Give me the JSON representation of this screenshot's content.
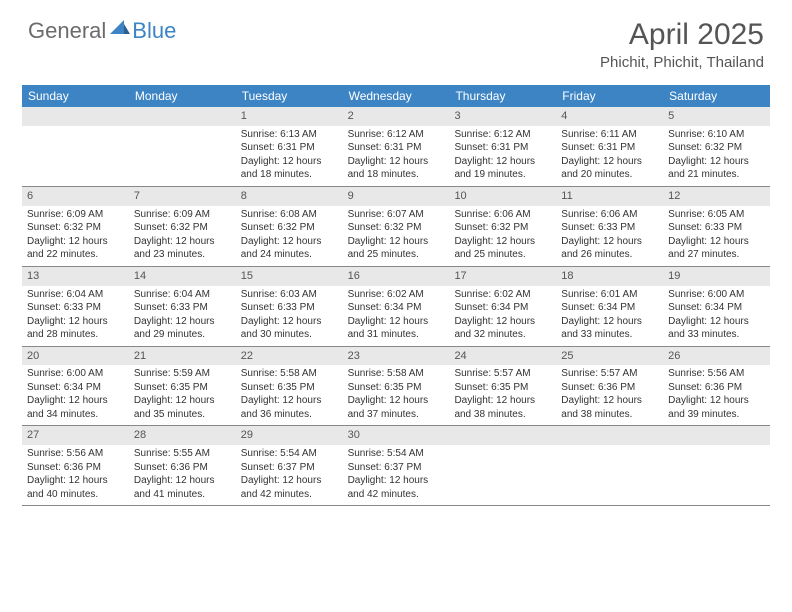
{
  "logo": {
    "part1": "General",
    "part2": "Blue"
  },
  "title": "April 2025",
  "location": "Phichit, Phichit, Thailand",
  "colors": {
    "header_bg": "#3d84c4",
    "header_text": "#ffffff",
    "daynum_bg": "#e8e8e8",
    "text": "#333333",
    "logo_gray": "#6b6b6b",
    "logo_blue": "#3d84c4"
  },
  "typography": {
    "title_fontsize": 30,
    "location_fontsize": 15,
    "weekday_fontsize": 12,
    "cell_fontsize": 10,
    "logo_fontsize": 22
  },
  "weekdays": [
    "Sunday",
    "Monday",
    "Tuesday",
    "Wednesday",
    "Thursday",
    "Friday",
    "Saturday"
  ],
  "weeks": [
    [
      {
        "empty": true
      },
      {
        "empty": true
      },
      {
        "day": "1",
        "sunrise": "Sunrise: 6:13 AM",
        "sunset": "Sunset: 6:31 PM",
        "daylight": "Daylight: 12 hours and 18 minutes."
      },
      {
        "day": "2",
        "sunrise": "Sunrise: 6:12 AM",
        "sunset": "Sunset: 6:31 PM",
        "daylight": "Daylight: 12 hours and 18 minutes."
      },
      {
        "day": "3",
        "sunrise": "Sunrise: 6:12 AM",
        "sunset": "Sunset: 6:31 PM",
        "daylight": "Daylight: 12 hours and 19 minutes."
      },
      {
        "day": "4",
        "sunrise": "Sunrise: 6:11 AM",
        "sunset": "Sunset: 6:31 PM",
        "daylight": "Daylight: 12 hours and 20 minutes."
      },
      {
        "day": "5",
        "sunrise": "Sunrise: 6:10 AM",
        "sunset": "Sunset: 6:32 PM",
        "daylight": "Daylight: 12 hours and 21 minutes."
      }
    ],
    [
      {
        "day": "6",
        "sunrise": "Sunrise: 6:09 AM",
        "sunset": "Sunset: 6:32 PM",
        "daylight": "Daylight: 12 hours and 22 minutes."
      },
      {
        "day": "7",
        "sunrise": "Sunrise: 6:09 AM",
        "sunset": "Sunset: 6:32 PM",
        "daylight": "Daylight: 12 hours and 23 minutes."
      },
      {
        "day": "8",
        "sunrise": "Sunrise: 6:08 AM",
        "sunset": "Sunset: 6:32 PM",
        "daylight": "Daylight: 12 hours and 24 minutes."
      },
      {
        "day": "9",
        "sunrise": "Sunrise: 6:07 AM",
        "sunset": "Sunset: 6:32 PM",
        "daylight": "Daylight: 12 hours and 25 minutes."
      },
      {
        "day": "10",
        "sunrise": "Sunrise: 6:06 AM",
        "sunset": "Sunset: 6:32 PM",
        "daylight": "Daylight: 12 hours and 25 minutes."
      },
      {
        "day": "11",
        "sunrise": "Sunrise: 6:06 AM",
        "sunset": "Sunset: 6:33 PM",
        "daylight": "Daylight: 12 hours and 26 minutes."
      },
      {
        "day": "12",
        "sunrise": "Sunrise: 6:05 AM",
        "sunset": "Sunset: 6:33 PM",
        "daylight": "Daylight: 12 hours and 27 minutes."
      }
    ],
    [
      {
        "day": "13",
        "sunrise": "Sunrise: 6:04 AM",
        "sunset": "Sunset: 6:33 PM",
        "daylight": "Daylight: 12 hours and 28 minutes."
      },
      {
        "day": "14",
        "sunrise": "Sunrise: 6:04 AM",
        "sunset": "Sunset: 6:33 PM",
        "daylight": "Daylight: 12 hours and 29 minutes."
      },
      {
        "day": "15",
        "sunrise": "Sunrise: 6:03 AM",
        "sunset": "Sunset: 6:33 PM",
        "daylight": "Daylight: 12 hours and 30 minutes."
      },
      {
        "day": "16",
        "sunrise": "Sunrise: 6:02 AM",
        "sunset": "Sunset: 6:34 PM",
        "daylight": "Daylight: 12 hours and 31 minutes."
      },
      {
        "day": "17",
        "sunrise": "Sunrise: 6:02 AM",
        "sunset": "Sunset: 6:34 PM",
        "daylight": "Daylight: 12 hours and 32 minutes."
      },
      {
        "day": "18",
        "sunrise": "Sunrise: 6:01 AM",
        "sunset": "Sunset: 6:34 PM",
        "daylight": "Daylight: 12 hours and 33 minutes."
      },
      {
        "day": "19",
        "sunrise": "Sunrise: 6:00 AM",
        "sunset": "Sunset: 6:34 PM",
        "daylight": "Daylight: 12 hours and 33 minutes."
      }
    ],
    [
      {
        "day": "20",
        "sunrise": "Sunrise: 6:00 AM",
        "sunset": "Sunset: 6:34 PM",
        "daylight": "Daylight: 12 hours and 34 minutes."
      },
      {
        "day": "21",
        "sunrise": "Sunrise: 5:59 AM",
        "sunset": "Sunset: 6:35 PM",
        "daylight": "Daylight: 12 hours and 35 minutes."
      },
      {
        "day": "22",
        "sunrise": "Sunrise: 5:58 AM",
        "sunset": "Sunset: 6:35 PM",
        "daylight": "Daylight: 12 hours and 36 minutes."
      },
      {
        "day": "23",
        "sunrise": "Sunrise: 5:58 AM",
        "sunset": "Sunset: 6:35 PM",
        "daylight": "Daylight: 12 hours and 37 minutes."
      },
      {
        "day": "24",
        "sunrise": "Sunrise: 5:57 AM",
        "sunset": "Sunset: 6:35 PM",
        "daylight": "Daylight: 12 hours and 38 minutes."
      },
      {
        "day": "25",
        "sunrise": "Sunrise: 5:57 AM",
        "sunset": "Sunset: 6:36 PM",
        "daylight": "Daylight: 12 hours and 38 minutes."
      },
      {
        "day": "26",
        "sunrise": "Sunrise: 5:56 AM",
        "sunset": "Sunset: 6:36 PM",
        "daylight": "Daylight: 12 hours and 39 minutes."
      }
    ],
    [
      {
        "day": "27",
        "sunrise": "Sunrise: 5:56 AM",
        "sunset": "Sunset: 6:36 PM",
        "daylight": "Daylight: 12 hours and 40 minutes."
      },
      {
        "day": "28",
        "sunrise": "Sunrise: 5:55 AM",
        "sunset": "Sunset: 6:36 PM",
        "daylight": "Daylight: 12 hours and 41 minutes."
      },
      {
        "day": "29",
        "sunrise": "Sunrise: 5:54 AM",
        "sunset": "Sunset: 6:37 PM",
        "daylight": "Daylight: 12 hours and 42 minutes."
      },
      {
        "day": "30",
        "sunrise": "Sunrise: 5:54 AM",
        "sunset": "Sunset: 6:37 PM",
        "daylight": "Daylight: 12 hours and 42 minutes."
      },
      {
        "empty": true
      },
      {
        "empty": true
      },
      {
        "empty": true
      }
    ]
  ]
}
